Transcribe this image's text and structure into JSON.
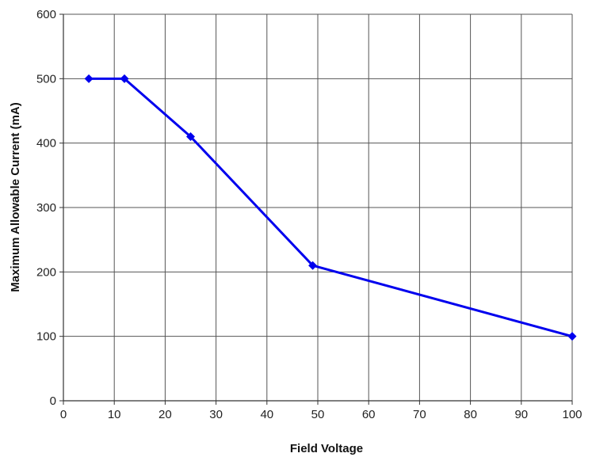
{
  "chart_data": {
    "type": "line",
    "xlabel": "Field Voltage",
    "ylabel": "Maximum Allowable Current (mA)",
    "xlim": [
      0,
      100
    ],
    "ylim": [
      0,
      600
    ],
    "xticks": [
      "0",
      "10",
      "20",
      "30",
      "40",
      "50",
      "60",
      "70",
      "80",
      "90",
      "100"
    ],
    "yticks": [
      "0",
      "100",
      "200",
      "300",
      "400",
      "500",
      "600"
    ],
    "grid": true,
    "legend": "none",
    "series": [
      {
        "color": "#0000ee",
        "marker": "diamond",
        "x": [
          5,
          12,
          25,
          49,
          100
        ],
        "y": [
          500,
          500,
          410,
          210,
          100
        ]
      }
    ]
  }
}
